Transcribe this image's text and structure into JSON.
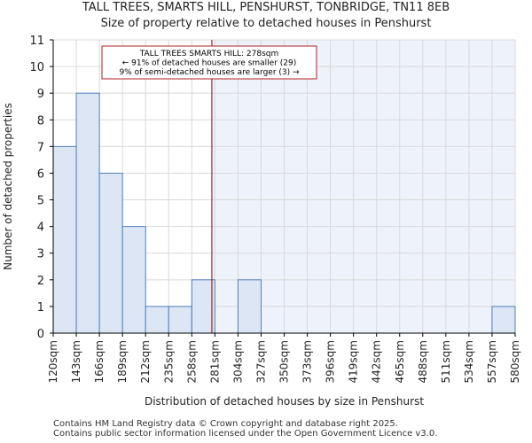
{
  "chart_data": {
    "type": "bar",
    "title": "TALL TREES, SMARTS HILL, PENSHURST, TONBRIDGE, TN11 8EB",
    "subtitle": "Size of property relative to detached houses in Penshurst",
    "xlabel": "Distribution of detached houses by size in Penshurst",
    "ylabel": "Number of detached properties",
    "bin_edges": [
      120,
      143,
      166,
      189,
      212,
      235,
      258,
      281,
      304,
      327,
      350,
      373,
      396,
      419,
      442,
      465,
      488,
      511,
      534,
      557,
      580
    ],
    "tick_labels": [
      "120sqm",
      "143sqm",
      "166sqm",
      "189sqm",
      "212sqm",
      "235sqm",
      "258sqm",
      "281sqm",
      "304sqm",
      "327sqm",
      "350sqm",
      "373sqm",
      "396sqm",
      "419sqm",
      "442sqm",
      "465sqm",
      "488sqm",
      "511sqm",
      "534sqm",
      "557sqm",
      "580sqm"
    ],
    "values": [
      7,
      9,
      6,
      4,
      1,
      1,
      2,
      0,
      2,
      0,
      0,
      0,
      0,
      0,
      0,
      0,
      0,
      0,
      0,
      1
    ],
    "ylim": [
      0,
      11
    ],
    "yticks": [
      0,
      1,
      2,
      3,
      4,
      5,
      6,
      7,
      8,
      9,
      10,
      11
    ],
    "xlim": [
      120,
      580
    ],
    "marker": {
      "value": 278,
      "label_lines": [
        "TALL TREES SMARTS HILL: 278sqm",
        "← 91% of detached houses are smaller (29)",
        "9% of semi-detached houses are larger (3) →"
      ]
    },
    "colors": {
      "bar_fill": "#dce6f5",
      "bar_stroke": "#4f81bd",
      "marker_line": "#8b0000",
      "annotation_border": "#b22222",
      "shaded_region": "#eef2fb",
      "grid": "#d9d9d9"
    },
    "grid": true
  },
  "footer": {
    "line1": "Contains HM Land Registry data © Crown copyright and database right 2025.",
    "line2": "Contains public sector information licensed under the Open Government Licence v3.0."
  }
}
